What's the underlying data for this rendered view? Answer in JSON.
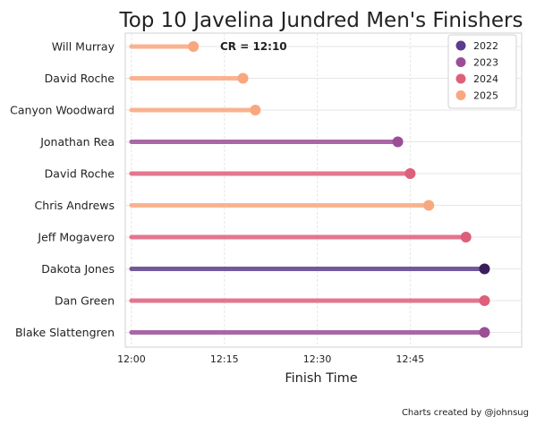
{
  "chart_data": {
    "type": "dumbbell",
    "title": "Top 10 Javelina Jundred Men's Finishers",
    "xlabel": "Finish Time",
    "ylabel": "",
    "start_time": "12:00",
    "x_ticks": [
      "12:00",
      "12:15",
      "12:30",
      "12:45"
    ],
    "xlim": [
      "11:59",
      "13:03"
    ],
    "grid": true,
    "legend_position": "top-right",
    "legend": [
      {
        "name": "2022",
        "color": "#5a3d8c"
      },
      {
        "name": "2023",
        "color": "#9b4e96"
      },
      {
        "name": "2024",
        "color": "#de5f7a"
      },
      {
        "name": "2025",
        "color": "#f9a77e"
      }
    ],
    "annotation": "CR = 12:10",
    "rows": [
      {
        "name": "Will Murray",
        "year": "2025",
        "finish": "12:10"
      },
      {
        "name": "David Roche",
        "year": "2025",
        "finish": "12:18"
      },
      {
        "name": "Canyon Woodward",
        "year": "2025",
        "finish": "12:20"
      },
      {
        "name": "Jonathan Rea",
        "year": "2023",
        "finish": "12:43"
      },
      {
        "name": "David Roche",
        "year": "2024",
        "finish": "12:45"
      },
      {
        "name": "Chris Andrews",
        "year": "2025",
        "finish": "12:48"
      },
      {
        "name": "Jeff Mogavero",
        "year": "2024",
        "finish": "12:54"
      },
      {
        "name": "Dakota Jones",
        "year": "2022",
        "finish": "12:57"
      },
      {
        "name": "Dan Green",
        "year": "2024",
        "finish": "12:57"
      },
      {
        "name": "Blake Slattengren",
        "year": "2023",
        "finish": "12:57"
      }
    ]
  },
  "footer": {
    "credit": "Charts created by @johnsug"
  }
}
